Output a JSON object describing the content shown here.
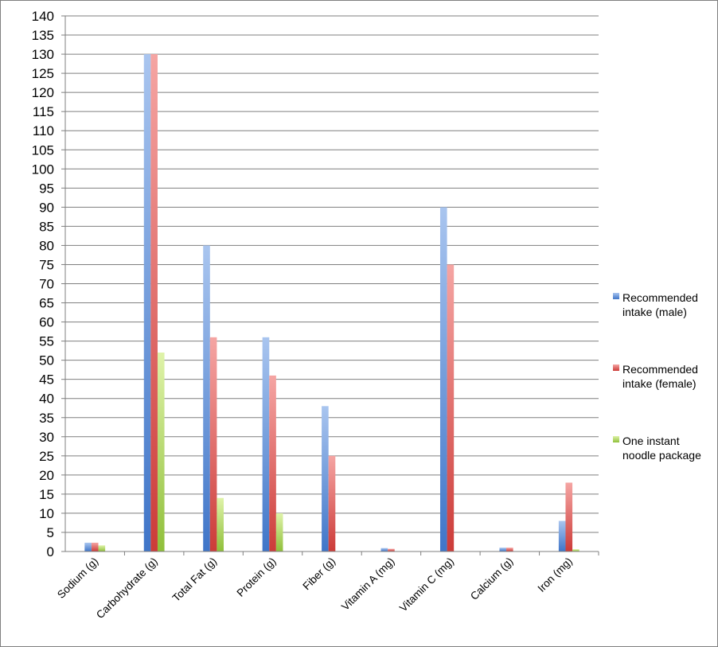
{
  "chart_data": {
    "type": "bar",
    "title": "",
    "xlabel": "",
    "ylabel": "",
    "ylim": [
      0,
      140
    ],
    "ytick_step": 5,
    "grid": true,
    "legend_position": "right",
    "categories": [
      "Sodium (g)",
      "Carbohydrate (g)",
      "Total Fat (g)",
      "Protein (g)",
      "Fiber (g)",
      "Vitamin A (mg)",
      "Vitamin C (mg)",
      "Calcium (g)",
      "Iron (mg)"
    ],
    "series": [
      {
        "name": "Recommended intake (male)",
        "legend_lines": [
          "Recommended",
          "intake (male)"
        ],
        "color": "#4f81bd",
        "values": [
          2.3,
          130,
          80,
          56,
          38,
          0.9,
          90,
          1,
          8
        ]
      },
      {
        "name": "Recommended intake (female)",
        "legend_lines": [
          "Recommended",
          "intake (female)"
        ],
        "color": "#c0504d",
        "values": [
          2.3,
          130,
          56,
          46,
          25,
          0.7,
          75,
          1,
          18
        ]
      },
      {
        "name": "One instant noodle package",
        "legend_lines": [
          "One instant",
          "noodle package"
        ],
        "color": "#9bbb59",
        "values": [
          1.6,
          52,
          14,
          10,
          0,
          0,
          0,
          0,
          0.6
        ]
      }
    ]
  }
}
